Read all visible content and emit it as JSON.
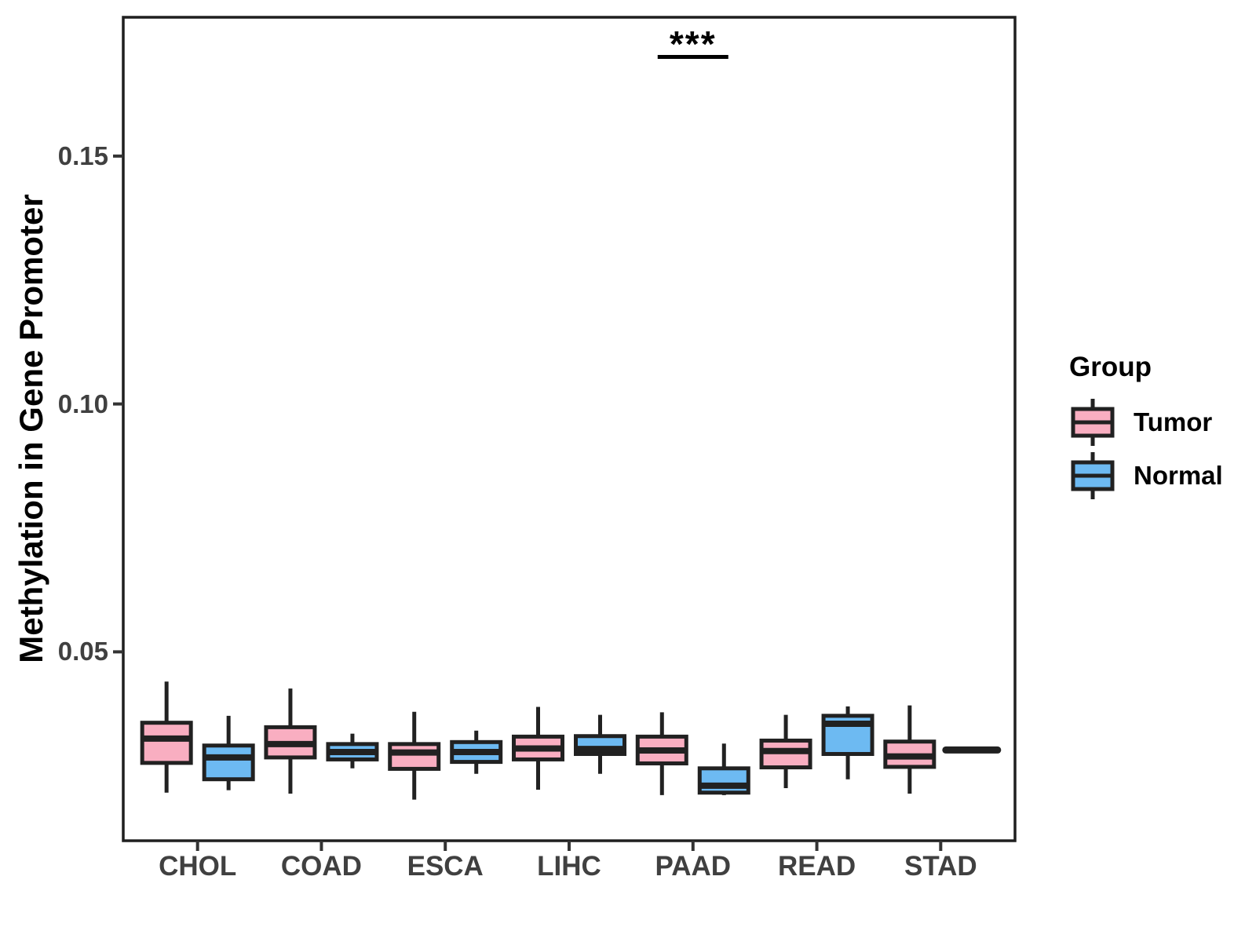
{
  "chart_data": {
    "type": "boxplot",
    "title": "",
    "xlabel": "",
    "ylabel": "Methylation in Gene Promoter",
    "categories": [
      "CHOL",
      "COAD",
      "ESCA",
      "LIHC",
      "PAAD",
      "READ",
      "STAD"
    ],
    "ylim": [
      0.0119,
      0.178
    ],
    "yticks": [
      {
        "value": 0.15,
        "label": "0.15"
      },
      {
        "value": 0.1,
        "label": "0.10"
      },
      {
        "value": 0.05,
        "label": "0.05"
      }
    ],
    "grid": false,
    "legend_position": "right",
    "series": [
      {
        "name": "Tumor",
        "color": "#F9AEC1",
        "boxes": [
          {
            "category": "CHOL",
            "min": 0.0216,
            "q1": 0.0276,
            "median": 0.0325,
            "q3": 0.0357,
            "max": 0.044
          },
          {
            "category": "COAD",
            "min": 0.0214,
            "q1": 0.0287,
            "median": 0.0314,
            "q3": 0.0348,
            "max": 0.0426
          },
          {
            "category": "ESCA",
            "min": 0.0202,
            "q1": 0.0264,
            "median": 0.0297,
            "q3": 0.0314,
            "max": 0.0379
          },
          {
            "category": "LIHC",
            "min": 0.0222,
            "q1": 0.0283,
            "median": 0.0305,
            "q3": 0.0329,
            "max": 0.0389
          },
          {
            "category": "PAAD",
            "min": 0.0211,
            "q1": 0.0275,
            "median": 0.0301,
            "q3": 0.0329,
            "max": 0.0378
          },
          {
            "category": "READ",
            "min": 0.0225,
            "q1": 0.0267,
            "median": 0.03,
            "q3": 0.0321,
            "max": 0.0373
          },
          {
            "category": "STAD",
            "min": 0.0214,
            "q1": 0.0268,
            "median": 0.0289,
            "q3": 0.0319,
            "max": 0.0392
          }
        ]
      },
      {
        "name": "Normal",
        "color": "#6DBAF2",
        "boxes": [
          {
            "category": "CHOL",
            "min": 0.0221,
            "q1": 0.0243,
            "median": 0.0287,
            "q3": 0.0311,
            "max": 0.0371
          },
          {
            "category": "COAD",
            "min": 0.0265,
            "q1": 0.0283,
            "median": 0.0298,
            "q3": 0.0314,
            "max": 0.0335
          },
          {
            "category": "ESCA",
            "min": 0.0254,
            "q1": 0.0278,
            "median": 0.0298,
            "q3": 0.0318,
            "max": 0.0341
          },
          {
            "category": "LIHC",
            "min": 0.0254,
            "q1": 0.0294,
            "median": 0.0304,
            "q3": 0.033,
            "max": 0.0373
          },
          {
            "category": "PAAD",
            "min": 0.0211,
            "q1": 0.0216,
            "median": 0.023,
            "q3": 0.0265,
            "max": 0.0315
          },
          {
            "category": "READ",
            "min": 0.0243,
            "q1": 0.0294,
            "median": 0.0355,
            "q3": 0.0371,
            "max": 0.039
          },
          {
            "category": "STAD",
            "min": 0.0302,
            "q1": 0.0302,
            "median": 0.0302,
            "q3": 0.0302,
            "max": 0.0302,
            "single_value": true
          }
        ]
      }
    ],
    "annotation": {
      "text": "***",
      "category": "PAAD",
      "y": 0.17
    }
  },
  "legend": {
    "title": "Group",
    "items": [
      {
        "label": "Tumor",
        "color": "#F9AEC1"
      },
      {
        "label": "Normal",
        "color": "#6DBAF2"
      }
    ]
  },
  "style": {
    "box_border_color": "#212121",
    "axis_color": "#1f1f1f",
    "tick_color": "#333333",
    "background": "#ffffff"
  }
}
